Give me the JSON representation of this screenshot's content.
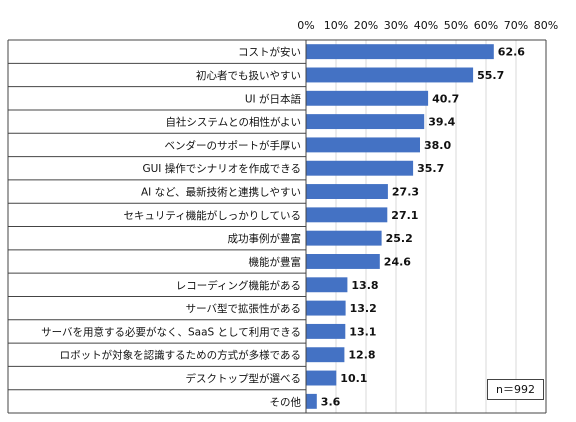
{
  "chart_data": {
    "type": "bar",
    "orientation": "horizontal",
    "categories": [
      "コストが安い",
      "初心者でも扱いやすい",
      "UI が日本語",
      "自社システムとの相性がよい",
      "ベンダーのサポートが手厚い",
      "GUI 操作でシナリオを作成できる",
      "AI など、最新技術と連携しやすい",
      "セキュリティ機能がしっかりしている",
      "成功事例が豊富",
      "機能が豊富",
      "レコーディング機能がある",
      "サーバ型で拡張性がある",
      "サーバを用意する必要がなく、SaaS として利用できる",
      "ロボットが対象を認識するための方式が多様である",
      "デスクトップ型が選べる",
      "その他"
    ],
    "values": [
      62.6,
      55.7,
      40.7,
      39.4,
      38.0,
      35.7,
      27.3,
      27.1,
      25.2,
      24.6,
      13.8,
      13.2,
      13.1,
      12.8,
      10.1,
      3.6
    ],
    "value_labels": [
      "62.6",
      "55.7",
      "40.7",
      "39.4",
      "38.0",
      "35.7",
      "27.3",
      "27.1",
      "25.2",
      "24.6",
      "13.8",
      "13.2",
      "13.1",
      "12.8",
      "10.1",
      "3.6"
    ],
    "x_ticks": [
      "0%",
      "10%",
      "20%",
      "30%",
      "40%",
      "50%",
      "60%",
      "70%",
      "80%"
    ],
    "xlim": [
      0,
      80
    ],
    "x_axis_position": "top",
    "grid": true,
    "bar_color": "#4472C4",
    "note": "n＝992"
  }
}
